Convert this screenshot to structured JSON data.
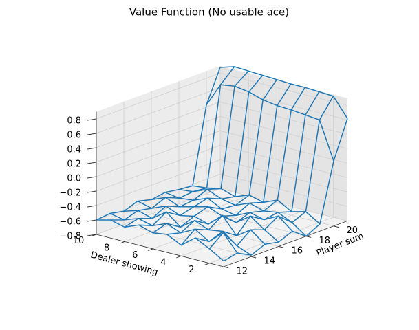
{
  "chart_data": {
    "type": "wireframe",
    "title": "Value Function (No usable ace)",
    "xlabel": "Player sum",
    "ylabel": "Dealer showing",
    "x": [
      12,
      13,
      14,
      15,
      16,
      17,
      18,
      19,
      20,
      21
    ],
    "y": [
      1,
      2,
      3,
      4,
      5,
      6,
      7,
      8,
      9,
      10
    ],
    "z": [
      [
        -0.72,
        -0.68,
        -0.78,
        -0.7,
        -0.74,
        -0.66,
        -0.8,
        -0.7,
        0.1,
        0.62
      ],
      [
        -0.6,
        -0.45,
        -0.7,
        -0.55,
        -0.62,
        -0.5,
        -0.66,
        -0.58,
        0.62,
        0.88
      ],
      [
        -0.5,
        -0.62,
        -0.55,
        -0.68,
        -0.48,
        -0.6,
        -0.57,
        -0.63,
        0.64,
        0.89
      ],
      [
        -0.65,
        -0.5,
        -0.58,
        -0.45,
        -0.62,
        -0.55,
        -0.6,
        -0.52,
        0.66,
        0.9
      ],
      [
        -0.55,
        -0.6,
        -0.5,
        -0.62,
        -0.58,
        -0.64,
        -0.54,
        -0.6,
        0.67,
        0.9
      ],
      [
        -0.58,
        -0.52,
        -0.64,
        -0.56,
        -0.5,
        -0.6,
        -0.62,
        -0.55,
        0.7,
        0.91
      ],
      [
        -0.52,
        -0.6,
        -0.48,
        -0.6,
        -0.55,
        -0.5,
        -0.58,
        -0.62,
        0.76,
        0.92
      ],
      [
        -0.6,
        -0.55,
        -0.62,
        -0.52,
        -0.6,
        -0.58,
        -0.5,
        -0.56,
        0.79,
        0.93
      ],
      [
        -0.55,
        -0.62,
        -0.56,
        -0.6,
        -0.52,
        -0.6,
        -0.58,
        -0.6,
        0.76,
        0.94
      ],
      [
        -0.6,
        -0.58,
        -0.62,
        -0.55,
        -0.6,
        -0.57,
        -0.6,
        -0.62,
        0.43,
        0.88
      ]
    ],
    "color": "#1f77b4",
    "xlim": [
      12,
      21
    ],
    "ylim": [
      1,
      10
    ],
    "zlim": [
      -0.8,
      0.9
    ],
    "xticks": [
      12,
      14,
      16,
      18,
      20
    ],
    "yticks": [
      2,
      4,
      6,
      8,
      10
    ],
    "zticks": [
      {
        "value": -0.8,
        "label": "−0.8"
      },
      {
        "value": -0.6,
        "label": "−0.6"
      },
      {
        "value": -0.4,
        "label": "−0.4"
      },
      {
        "value": -0.2,
        "label": "−0.2"
      },
      {
        "value": 0.0,
        "label": "0.0"
      },
      0.2,
      0.4,
      0.6,
      0.8
    ],
    "grid": true
  }
}
